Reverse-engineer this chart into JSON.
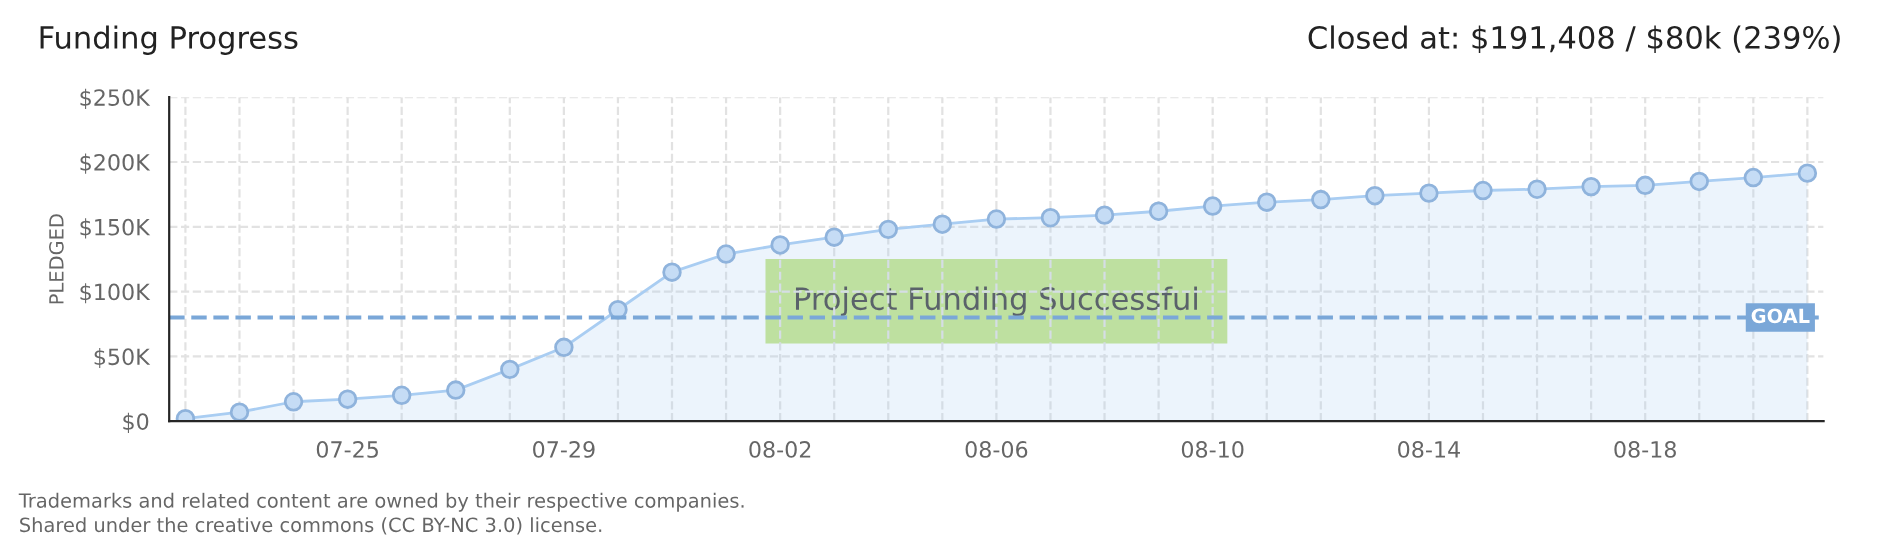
{
  "chart_data": {
    "type": "area",
    "title": "Funding Progress",
    "subtitle": "Closed at: $191,408 / $80k (239%)",
    "ylabel": "PLEDGED",
    "categories": [
      null,
      null,
      null,
      "07-25",
      null,
      null,
      null,
      "07-29",
      null,
      null,
      null,
      "08-02",
      null,
      null,
      null,
      "08-06",
      null,
      null,
      null,
      "08-10",
      null,
      null,
      null,
      "08-14",
      null,
      null,
      null,
      "08-18",
      null,
      null,
      null
    ],
    "series": [
      {
        "color": "#a9cdf2",
        "values": [
          2000,
          7000,
          15000,
          17000,
          20000,
          24000,
          40000,
          57000,
          86000,
          115000,
          129000,
          136000,
          142000,
          148000,
          152000,
          156000,
          157000,
          159000,
          162000,
          166000,
          169000,
          171000,
          174000,
          176000,
          178000,
          179000,
          181000,
          182000,
          185000,
          188000,
          191408
        ]
      }
    ],
    "ylim": [
      0,
      250000
    ],
    "yticks": [
      {
        "value": 0,
        "label": "$0"
      },
      {
        "value": 50000,
        "label": "$50K"
      },
      {
        "value": 100000,
        "label": "$100K"
      },
      {
        "value": 150000,
        "label": "$150K"
      },
      {
        "value": 200000,
        "label": "$200K"
      },
      {
        "value": 250000,
        "label": "$250K"
      }
    ],
    "ref_lines": [
      {
        "axis": "y",
        "value": 80000,
        "label": "GOAL",
        "color": "#7aa7d8",
        "line_style": "dashed"
      }
    ],
    "annotations": [
      "Project Funding Successful",
      "Trademarks and related content are owned by their respective companies.",
      "Shared under the creative commons (CC BY-NC 3.0) license."
    ],
    "grid": true,
    "legend": false,
    "marker": "circle",
    "line_style": "solid"
  }
}
